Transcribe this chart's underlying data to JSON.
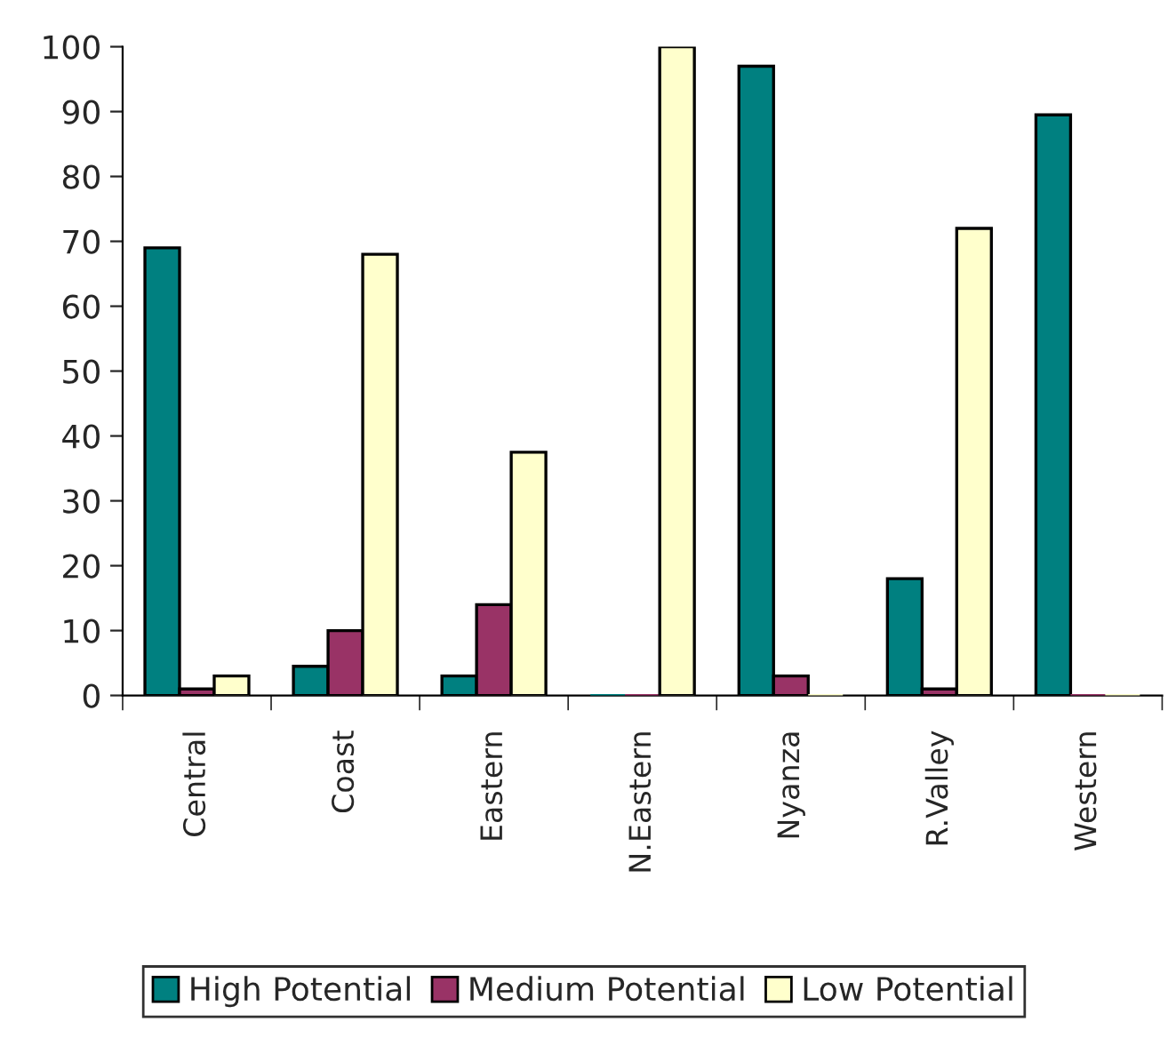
{
  "chart_data": {
    "type": "bar",
    "categories": [
      "Central",
      "Coast",
      "Eastern",
      "N.Eastern",
      "Nyanza",
      "R.Valley",
      "Western"
    ],
    "series": [
      {
        "name": "High Potential",
        "color": "#008080",
        "values": [
          69,
          4.5,
          3,
          0,
          97,
          18,
          89.5
        ]
      },
      {
        "name": "Medium Potential",
        "color": "#993366",
        "values": [
          1,
          10,
          14,
          0,
          3,
          1,
          0
        ]
      },
      {
        "name": "Low Potential",
        "color": "#ffffcc",
        "values": [
          3,
          68,
          37.5,
          100,
          0,
          72,
          0
        ]
      }
    ],
    "ylim": [
      0,
      100
    ],
    "yticks": [
      0,
      10,
      20,
      30,
      40,
      50,
      60,
      70,
      80,
      90,
      100
    ],
    "grid": false,
    "legend": "bottom"
  }
}
